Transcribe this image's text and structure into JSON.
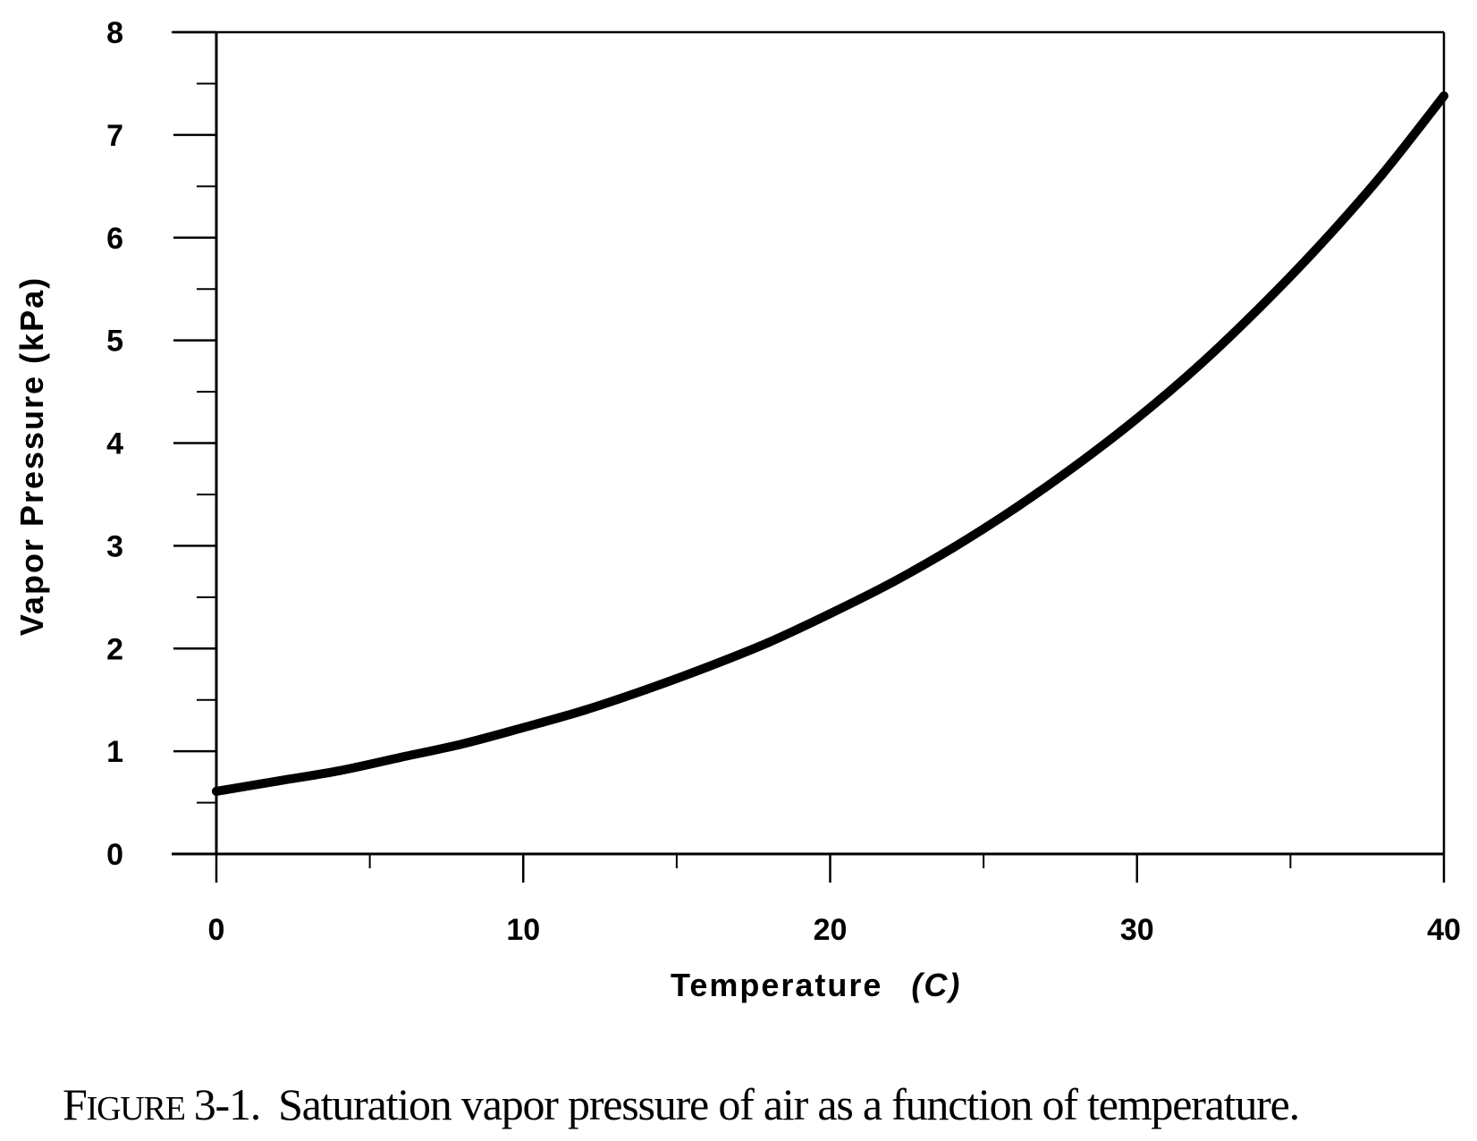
{
  "chart_data": {
    "type": "line",
    "xlabel": "Temperature",
    "xlabel_unit": "(C)",
    "ylabel": "Vapor Pressure (kPa)",
    "xlim": [
      0,
      40
    ],
    "ylim": [
      0,
      8
    ],
    "x_ticks": [
      "0",
      "10",
      "20",
      "30",
      "40"
    ],
    "y_ticks": [
      "0",
      "1",
      "2",
      "3",
      "4",
      "5",
      "6",
      "7",
      "8"
    ],
    "grid": false,
    "legend": false,
    "series": [
      {
        "x": [
          0,
          2,
          4,
          6,
          8,
          10,
          12,
          14,
          16,
          18,
          20,
          22,
          24,
          26,
          28,
          30,
          32,
          34,
          36,
          38,
          40
        ],
        "y": [
          0.61,
          0.71,
          0.81,
          0.94,
          1.07,
          1.23,
          1.4,
          1.6,
          1.82,
          2.06,
          2.34,
          2.64,
          2.98,
          3.36,
          3.78,
          4.24,
          4.75,
          5.32,
          5.94,
          6.62,
          7.38
        ]
      }
    ],
    "color": "#000000"
  },
  "caption": {
    "figure_label_first": "F",
    "figure_label_rest": "IGURE",
    "figure_number": "3-1.",
    "text": "Saturation vapor pressure of air as a function of temperature."
  }
}
